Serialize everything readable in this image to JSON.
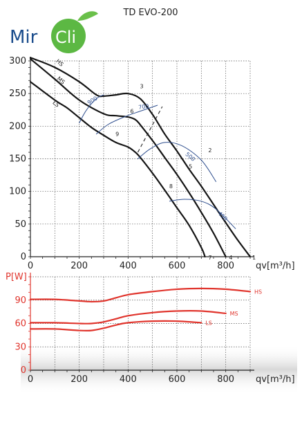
{
  "logo": {
    "part1": "Mir",
    "part2": "Cli",
    "colors": {
      "text": "#1a4c8c",
      "leaf": "#6ac04a",
      "circle": "#5cb843"
    }
  },
  "title": "TD EVO-200",
  "colors": {
    "curve": "#141414",
    "iso": "#2f4f8f",
    "power": "#e0342c",
    "grid": "#444444"
  },
  "chart_data": [
    {
      "type": "line",
      "title": "TD EVO-200",
      "xlabel": "qv[m³/h]",
      "ylabel": "",
      "xlim": [
        0,
        900
      ],
      "ylim": [
        0,
        300
      ],
      "xticks": [
        0,
        200,
        400,
        600,
        800
      ],
      "yticks": [
        0,
        50,
        100,
        150,
        200,
        250,
        300
      ],
      "grid": true,
      "series": [
        {
          "name": "HS",
          "x": [
            0,
            100,
            200,
            270,
            300,
            350,
            400,
            450,
            500,
            550,
            600,
            650,
            700,
            750,
            800,
            850,
            900
          ],
          "y": [
            305,
            290,
            268,
            248,
            246,
            248,
            250,
            242,
            218,
            188,
            162,
            134,
            108,
            80,
            52,
            25,
            0
          ]
        },
        {
          "name": "MS",
          "x": [
            0,
            100,
            200,
            300,
            350,
            400,
            430,
            450,
            500,
            550,
            600,
            650,
            700,
            750,
            800
          ],
          "y": [
            303,
            272,
            240,
            219,
            216,
            214,
            210,
            202,
            178,
            152,
            126,
            98,
            68,
            36,
            0
          ]
        },
        {
          "name": "LS",
          "x": [
            0,
            100,
            150,
            200,
            250,
            300,
            350,
            400,
            430,
            450,
            500,
            550,
            600,
            650,
            700,
            715
          ],
          "y": [
            268,
            240,
            228,
            213,
            198,
            186,
            175,
            168,
            160,
            152,
            128,
            102,
            75,
            48,
            14,
            0
          ]
        },
        {
          "name": "900",
          "x": [
            200,
            230,
            270,
            300
          ],
          "y": [
            205,
            225,
            242,
            248
          ]
        },
        {
          "name": "700",
          "x": [
            270,
            320,
            390,
            450,
            520
          ],
          "y": [
            188,
            203,
            215,
            223,
            232
          ]
        },
        {
          "name": "500",
          "x": [
            440,
            490,
            550,
            620,
            700,
            760
          ],
          "y": [
            150,
            165,
            175,
            170,
            148,
            115
          ]
        },
        {
          "name": "450",
          "x": [
            570,
            630,
            700,
            760,
            840
          ],
          "y": [
            85,
            88,
            85,
            73,
            43
          ]
        }
      ],
      "dashed_line": {
        "x": [
          440,
          540
        ],
        "y": [
          160,
          230
        ]
      },
      "curve_labels": [
        "7",
        "4",
        "1",
        "8",
        "5",
        "2",
        "9",
        "6",
        "3",
        "HS",
        "MS",
        "LS"
      ],
      "iso_labels": [
        "900",
        "700",
        "500",
        "450"
      ]
    },
    {
      "type": "line",
      "xlabel": "qv[m³/h]",
      "ylabel": "P[W]",
      "xlim": [
        0,
        900
      ],
      "ylim": [
        0,
        120
      ],
      "xticks": [
        0,
        200,
        400,
        600,
        800
      ],
      "yticks": [
        0,
        30,
        60,
        90
      ],
      "grid": true,
      "series": [
        {
          "name": "HS",
          "x": [
            0,
            100,
            200,
            250,
            300,
            350,
            400,
            500,
            600,
            700,
            800,
            900
          ],
          "y": [
            91,
            91,
            89,
            88,
            89,
            93,
            97,
            101,
            104,
            105,
            104,
            101
          ]
        },
        {
          "name": "MS",
          "x": [
            0,
            100,
            200,
            250,
            300,
            350,
            400,
            500,
            600,
            700,
            800
          ],
          "y": [
            61,
            61,
            60,
            60,
            62,
            66,
            70,
            74,
            76,
            76,
            73
          ]
        },
        {
          "name": "LS",
          "x": [
            0,
            100,
            200,
            250,
            300,
            350,
            400,
            500,
            600,
            700
          ],
          "y": [
            53,
            53,
            51,
            51,
            54,
            58,
            61,
            63,
            63,
            61
          ]
        }
      ]
    }
  ]
}
